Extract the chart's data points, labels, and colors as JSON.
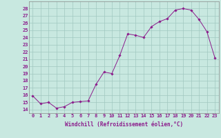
{
  "x": [
    0,
    1,
    2,
    3,
    4,
    5,
    6,
    7,
    8,
    9,
    10,
    11,
    12,
    13,
    14,
    15,
    16,
    17,
    18,
    19,
    20,
    21,
    22,
    23
  ],
  "y": [
    15.9,
    14.8,
    15.0,
    14.2,
    14.4,
    15.0,
    15.1,
    15.2,
    17.5,
    19.2,
    19.0,
    21.5,
    24.5,
    24.3,
    24.0,
    25.5,
    26.2,
    26.6,
    27.8,
    28.0,
    27.8,
    26.5,
    24.8,
    21.2
  ],
  "line_color": "#8b1a8b",
  "marker": "D",
  "marker_size": 1.8,
  "bg_color": "#c8e8e0",
  "grid_color": "#a0c8c0",
  "xlabel": "Windchill (Refroidissement éolien,°C)",
  "ylabel_ticks": [
    14,
    15,
    16,
    17,
    18,
    19,
    20,
    21,
    22,
    23,
    24,
    25,
    26,
    27,
    28
  ],
  "xlim": [
    -0.5,
    23.5
  ],
  "ylim": [
    13.5,
    29.0
  ],
  "xticks": [
    0,
    1,
    2,
    3,
    4,
    5,
    6,
    7,
    8,
    9,
    10,
    11,
    12,
    13,
    14,
    15,
    16,
    17,
    18,
    19,
    20,
    21,
    22,
    23
  ],
  "xtick_labels": [
    "0",
    "1",
    "2",
    "3",
    "4",
    "5",
    "6",
    "7",
    "8",
    "9",
    "10",
    "11",
    "12",
    "13",
    "14",
    "15",
    "16",
    "17",
    "18",
    "19",
    "20",
    "21",
    "22",
    "23"
  ],
  "tick_fontsize": 5.0,
  "xlabel_fontsize": 5.5,
  "linewidth": 0.7
}
